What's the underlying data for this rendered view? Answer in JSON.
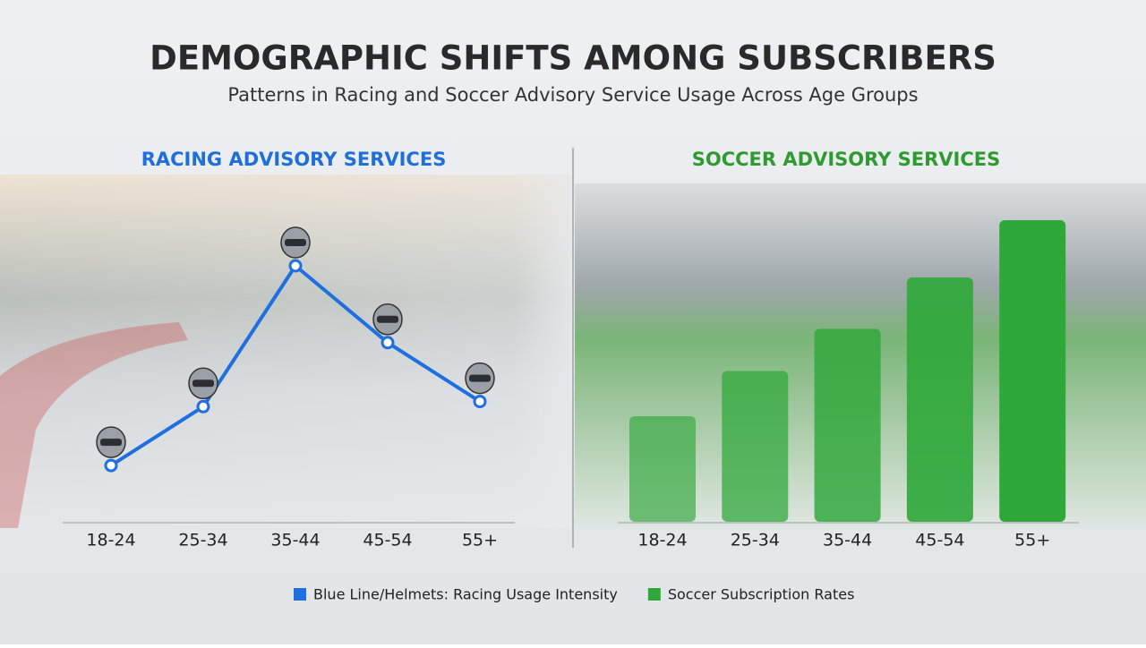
{
  "title": "DEMOGRAPHIC SHIFTS AMONG SUBSCRIBERS",
  "subtitle": "Patterns in Racing and Soccer Advisory Service Usage Across Age Groups",
  "chart_data": [
    {
      "type": "line",
      "title": "RACING ADVISORY SERVICES",
      "categories": [
        "18-24",
        "25-34",
        "35-44",
        "45-54",
        "55+"
      ],
      "series": [
        {
          "name": "Blue Line/Helmets: Racing Usage Intensity",
          "color": "#1f6fe0",
          "values": [
            22,
            45,
            100,
            70,
            47
          ]
        }
      ]
    },
    {
      "type": "bar",
      "title": "SOCCER ADVISORY SERVICES",
      "categories": [
        "18-24",
        "25-34",
        "35-44",
        "45-54",
        "55+"
      ],
      "series": [
        {
          "name": "Soccer Subscription Rates",
          "color": "#2fa83a",
          "values": [
            35,
            50,
            64,
            81,
            100
          ]
        }
      ]
    }
  ]
}
